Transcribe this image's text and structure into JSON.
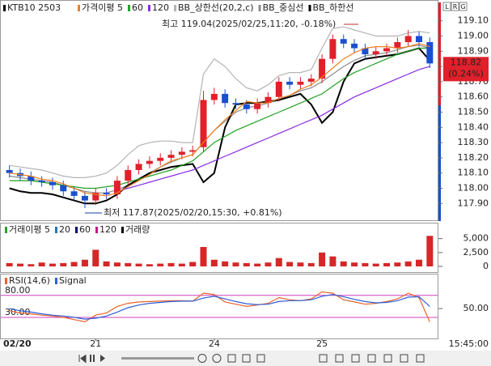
{
  "chart_data": [
    {
      "type": "candlestick",
      "title": "KTB10 2503",
      "categories": [
        "02/20",
        null,
        null,
        null,
        null,
        null,
        null,
        null,
        "21",
        null,
        null,
        null,
        null,
        null,
        null,
        null,
        null,
        null,
        null,
        "24",
        null,
        null,
        null,
        null,
        null,
        null,
        null,
        null,
        null,
        "25",
        null,
        null,
        null,
        null,
        null,
        null,
        null,
        null,
        null,
        null
      ],
      "open": [
        118.12,
        118.1,
        118.08,
        118.05,
        118.04,
        118.02,
        117.98,
        117.95,
        117.92,
        117.97,
        117.96,
        118.05,
        118.12,
        118.16,
        118.18,
        118.2,
        118.22,
        118.24,
        118.27,
        118.58,
        118.62,
        118.56,
        118.55,
        118.52,
        118.56,
        118.6,
        118.7,
        118.68,
        118.7,
        118.72,
        118.85,
        118.98,
        118.95,
        118.92,
        118.88,
        118.9,
        118.92,
        118.96,
        119.0,
        118.96
      ],
      "high": [
        118.15,
        118.13,
        118.11,
        118.08,
        118.07,
        118.05,
        118.01,
        117.98,
        118.0,
        118.0,
        118.08,
        118.15,
        118.19,
        118.21,
        118.23,
        118.25,
        118.27,
        118.28,
        118.64,
        118.66,
        118.65,
        118.59,
        118.58,
        118.59,
        118.63,
        118.73,
        118.73,
        118.73,
        118.75,
        118.88,
        119.01,
        119.01,
        118.98,
        118.95,
        118.93,
        118.95,
        118.99,
        119.04,
        119.03,
        118.99
      ],
      "low": [
        118.07,
        118.05,
        118.02,
        118.01,
        117.99,
        117.95,
        117.92,
        117.87,
        117.89,
        117.93,
        117.93,
        118.02,
        118.09,
        118.13,
        118.15,
        118.17,
        118.19,
        118.21,
        118.24,
        118.55,
        118.53,
        118.52,
        118.49,
        118.49,
        118.53,
        118.57,
        118.65,
        118.65,
        118.67,
        118.69,
        118.82,
        118.92,
        118.89,
        118.85,
        118.85,
        118.87,
        118.89,
        118.93,
        118.93,
        118.79
      ],
      "close": [
        118.1,
        118.08,
        118.05,
        118.04,
        118.02,
        117.98,
        117.95,
        117.92,
        117.97,
        117.96,
        118.05,
        118.12,
        118.16,
        118.18,
        118.2,
        118.22,
        118.24,
        118.25,
        118.58,
        118.62,
        118.56,
        118.55,
        118.52,
        118.56,
        118.6,
        118.7,
        118.68,
        118.7,
        118.72,
        118.85,
        118.98,
        118.95,
        118.92,
        118.88,
        118.9,
        118.92,
        118.96,
        119.0,
        118.96,
        118.82
      ],
      "up_color": "#e0202a",
      "down_color": "#1a4fd0",
      "series": [
        {
          "name": "가격이평 5",
          "color": "#f07f1f",
          "values": [
            118.1,
            118.09,
            118.08,
            118.06,
            118.05,
            118.03,
            118.0,
            117.97,
            117.96,
            117.95,
            117.97,
            118.01,
            118.05,
            118.09,
            118.14,
            118.18,
            118.2,
            118.22,
            118.3,
            118.38,
            118.45,
            118.51,
            118.57,
            118.56,
            118.56,
            118.59,
            118.61,
            118.65,
            118.68,
            118.73,
            118.79,
            118.85,
            118.89,
            118.92,
            118.93,
            118.93,
            118.92,
            118.93,
            118.95,
            118.93
          ]
        },
        {
          "name": "60",
          "color": "#21a121",
          "values": [
            118.05,
            118.05,
            118.05,
            118.04,
            118.03,
            118.02,
            118.01,
            118.0,
            118.0,
            118.01,
            118.02,
            118.04,
            118.06,
            118.08,
            118.1,
            118.12,
            118.15,
            118.18,
            118.24,
            118.3,
            118.34,
            118.38,
            118.41,
            118.44,
            118.47,
            118.5,
            118.53,
            118.56,
            118.59,
            118.62,
            118.67,
            118.72,
            118.76,
            118.79,
            118.82,
            118.85,
            118.88,
            118.9,
            118.92,
            118.92
          ]
        },
        {
          "name": "120",
          "color": "#8a2be2",
          "values": [
            null,
            null,
            null,
            null,
            null,
            null,
            null,
            null,
            null,
            null,
            117.98,
            118.0,
            118.02,
            118.04,
            118.06,
            118.08,
            118.1,
            118.12,
            118.15,
            118.18,
            118.21,
            118.24,
            118.27,
            118.3,
            118.33,
            118.36,
            118.39,
            118.42,
            118.45,
            118.48,
            118.52,
            118.56,
            118.6,
            118.63,
            118.66,
            118.69,
            118.72,
            118.75,
            118.78,
            118.8
          ]
        },
        {
          "name": "BB_상한선(20,2,c)",
          "color": "#b4b4b4",
          "values": [
            118.15,
            118.14,
            118.13,
            118.12,
            118.1,
            118.08,
            118.07,
            118.07,
            118.08,
            118.1,
            118.15,
            118.22,
            118.28,
            118.3,
            118.31,
            118.31,
            118.3,
            118.3,
            118.75,
            118.85,
            118.8,
            118.72,
            118.66,
            118.64,
            118.68,
            118.74,
            118.76,
            118.76,
            118.78,
            118.92,
            119.05,
            119.06,
            119.04,
            119.02,
            119.0,
            119.0,
            119.0,
            119.02,
            119.03,
            119.02
          ]
        },
        {
          "name": "BB_중심선",
          "color": "#8c8c8c",
          "values": [
            118.08,
            118.07,
            118.06,
            118.05,
            118.04,
            118.02,
            118.0,
            117.98,
            117.97,
            117.97,
            117.99,
            118.02,
            118.06,
            118.1,
            118.14,
            118.17,
            118.2,
            118.22,
            118.3,
            118.38,
            118.44,
            118.5,
            118.53,
            118.54,
            118.56,
            118.58,
            118.61,
            118.64,
            118.66,
            118.7,
            118.75,
            118.8,
            118.84,
            118.87,
            118.88,
            118.89,
            118.91,
            118.93,
            118.94,
            118.92
          ]
        },
        {
          "name": "BB_하한선",
          "color": "#000000",
          "values": [
            118.0,
            117.98,
            117.97,
            117.97,
            117.96,
            117.94,
            117.92,
            117.9,
            117.9,
            117.92,
            117.96,
            118.02,
            118.06,
            118.1,
            118.12,
            118.14,
            118.15,
            118.16,
            118.04,
            118.1,
            118.4,
            118.55,
            118.56,
            118.56,
            118.57,
            118.58,
            118.6,
            118.62,
            118.55,
            118.43,
            118.5,
            118.7,
            118.82,
            118.85,
            118.86,
            118.87,
            118.88,
            118.9,
            118.92,
            118.84
          ]
        }
      ],
      "ylim": [
        117.79,
        119.21
      ],
      "yticks": [
        {
          "value": 119.1,
          "label": "119.10"
        },
        {
          "value": 119.0,
          "label": "119.00"
        },
        {
          "value": 118.9,
          "label": "118.90"
        },
        {
          "value": 118.8,
          "label": "118.80"
        },
        {
          "value": 118.7,
          "label": "118.70"
        },
        {
          "value": 118.6,
          "label": "118.60"
        },
        {
          "value": 118.5,
          "label": "118.50"
        },
        {
          "value": 118.4,
          "label": "118.40"
        },
        {
          "value": 118.3,
          "label": "118.30"
        },
        {
          "value": 118.2,
          "label": "118.20"
        },
        {
          "value": 118.1,
          "label": "118.10"
        },
        {
          "value": 118.0,
          "label": "118.00"
        },
        {
          "value": 117.9,
          "label": "117.90"
        }
      ],
      "annotations": [
        "최고 119.04(2025/02/25,11:20, -0.18%)",
        "최저 117.87(2025/02/20,15:30, +0.81%)"
      ],
      "last_change": "(0.24%)",
      "side_buttons": [
        "L",
        "R",
        "G"
      ],
      "time_label": "15:45:00"
    },
    {
      "type": "bar",
      "legend_items": [
        {
          "name": "거래이평 5",
          "color": "#2ca02c"
        },
        {
          "name": "20",
          "color": "#1f77b4"
        },
        {
          "name": "60",
          "color": "#000080"
        },
        {
          "name": "120",
          "color": "#c71585"
        }
      ],
      "series": [
        {
          "name": "거래량",
          "color": "#d62728",
          "values": [
            600,
            500,
            400,
            700,
            500,
            600,
            800,
            1200,
            3000,
            900,
            700,
            600,
            500,
            400,
            500,
            600,
            500,
            800,
            3500,
            1200,
            900,
            700,
            600,
            500,
            700,
            1500,
            800,
            700,
            600,
            2500,
            1800,
            900,
            700,
            600,
            500,
            600,
            700,
            900,
            1200,
            5500
          ]
        }
      ],
      "ylim": [
        0,
        7000
      ],
      "yticks": [
        {
          "value": 5000,
          "label": "5,000"
        },
        {
          "value": 2500,
          "label": "2,500"
        },
        0
      ]
    },
    {
      "type": "line",
      "series": [
        {
          "name": "RSI(14,6)",
          "color": "#e8632b",
          "values": [
            45,
            40,
            38,
            35,
            33,
            30,
            25,
            20,
            35,
            40,
            55,
            62,
            65,
            66,
            67,
            68,
            68,
            67,
            85,
            82,
            65,
            60,
            55,
            58,
            62,
            75,
            70,
            68,
            72,
            88,
            85,
            70,
            65,
            60,
            62,
            66,
            72,
            85,
            75,
            20
          ]
        },
        {
          "name": "Signal",
          "color": "#2b5fd9",
          "values": [
            50,
            45,
            42,
            38,
            35,
            33,
            30,
            26,
            28,
            33,
            42,
            52,
            58,
            62,
            64,
            66,
            67,
            67,
            74,
            78,
            72,
            66,
            61,
            59,
            60,
            66,
            68,
            68,
            70,
            78,
            82,
            77,
            71,
            66,
            63,
            64,
            68,
            76,
            77,
            55
          ]
        }
      ],
      "ylim": [
        -18,
        122
      ],
      "yticks": [
        {
          "value": 50,
          "label": "50.00"
        }
      ],
      "levels": [
        {
          "value": 80,
          "label": "80.00"
        },
        {
          "value": 30,
          "label": "30.00"
        }
      ],
      "level_color": "#d040c0"
    }
  ]
}
